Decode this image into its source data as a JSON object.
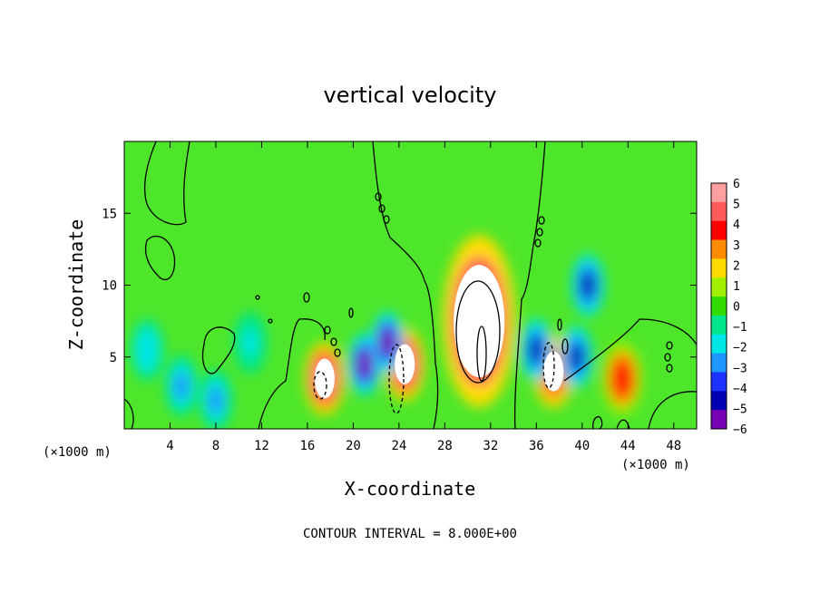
{
  "chart_data": {
    "type": "heatmap",
    "title": "vertical velocity",
    "xlabel": "X-coordinate",
    "ylabel": "Z-coordinate",
    "x_units": "(×1000 m)",
    "y_units": "(×1000 m)",
    "xlim": [
      0,
      50
    ],
    "ylim": [
      0,
      20
    ],
    "x_ticks": [
      4,
      8,
      12,
      16,
      20,
      24,
      28,
      32,
      36,
      40,
      44,
      48
    ],
    "y_ticks": [
      5,
      10,
      15
    ],
    "contour_note": "CONTOUR INTERVAL = 8.000E+00",
    "colorbar": {
      "labels": [
        "6",
        "5",
        "4",
        "3",
        "2",
        "1",
        "0",
        "−1",
        "−2",
        "−3",
        "−4",
        "−5",
        "−6"
      ],
      "range": [
        -6,
        6
      ],
      "colors": [
        "#ff9f9f",
        "#ff5a5a",
        "#ff0000",
        "#ff8c00",
        "#ffdc00",
        "#a0f000",
        "#32dc00",
        "#00e68c",
        "#00e6e6",
        "#1e96ff",
        "#1e32ff",
        "#0000b4",
        "#7800b4"
      ]
    },
    "features": [
      {
        "x": 31,
        "z": 7.5,
        "w": 7.0,
        "type": "updraft",
        "peak": ">6"
      },
      {
        "x": 17.5,
        "z": 3.5,
        "w": 6.0,
        "type": "updraft",
        "peak": ">6"
      },
      {
        "x": 24.5,
        "z": 4.5,
        "w": 6.0,
        "type": "updraft",
        "peak": ">6"
      },
      {
        "x": 37.5,
        "z": 4.0,
        "w": 5.0,
        "type": "updraft",
        "peak": ">6"
      },
      {
        "x": 43.5,
        "z": 3.5,
        "w": 4.0,
        "type": "updraft"
      },
      {
        "x": 21.0,
        "z": 4.5,
        "w": -6.0,
        "type": "downdraft"
      },
      {
        "x": 23.0,
        "z": 6.0,
        "w": -6.0,
        "type": "downdraft"
      },
      {
        "x": 36.0,
        "z": 5.5,
        "w": -5.0,
        "type": "downdraft"
      },
      {
        "x": 39.5,
        "z": 5.0,
        "w": -5.0,
        "type": "downdraft"
      },
      {
        "x": 40.5,
        "z": 10.0,
        "w": -5.0,
        "type": "downdraft"
      },
      {
        "x": 5.0,
        "z": 3.0,
        "w": -3.5,
        "type": "downdraft"
      },
      {
        "x": 8.0,
        "z": 2.0,
        "w": -3.0,
        "type": "downdraft"
      },
      {
        "x": 2.0,
        "z": 5.5,
        "w": -2.5,
        "type": "downdraft"
      },
      {
        "x": 11.0,
        "z": 6.0,
        "w": -2.0,
        "type": "downdraft"
      }
    ]
  }
}
